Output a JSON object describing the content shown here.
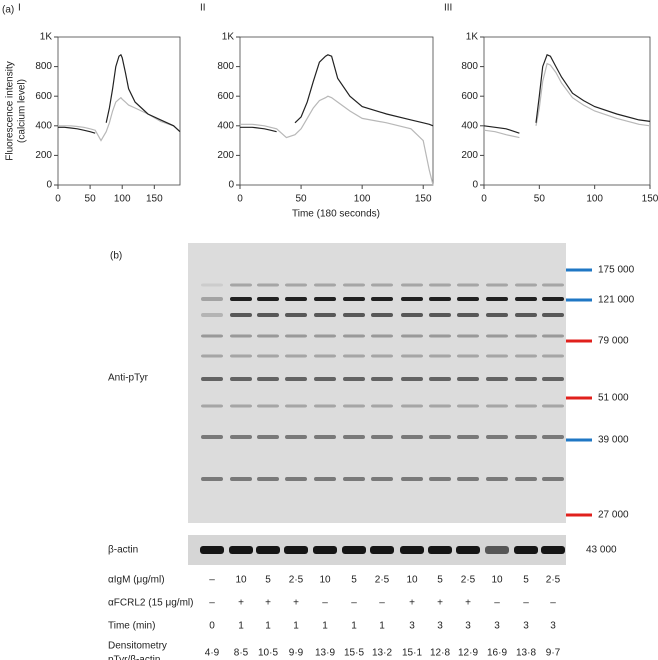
{
  "panel_a_label": "(a)",
  "x_label": "Time (180 seconds)",
  "y_label": [
    "Fluorescence intensity",
    "(calcium level)"
  ],
  "chart_data": [
    {
      "type": "line",
      "title": "I",
      "xlim": [
        0,
        190
      ],
      "xticks": [
        0,
        50,
        100,
        150
      ],
      "ylim": [
        0,
        1000
      ],
      "yticks": [
        0,
        200,
        400,
        600,
        800,
        {
          "value": 1000,
          "label": "1K"
        }
      ],
      "x": [
        0,
        10,
        20,
        30,
        40,
        50,
        58,
        67,
        75,
        80,
        85,
        90,
        95,
        98,
        100,
        105,
        110,
        120,
        130,
        140,
        160,
        180,
        190
      ],
      "series": [
        {
          "color": "#222222",
          "values": [
            390,
            390,
            385,
            380,
            370,
            360,
            350,
            null,
            420,
            520,
            650,
            800,
            870,
            880,
            860,
            760,
            650,
            560,
            520,
            480,
            440,
            400,
            360
          ]
        },
        {
          "color": "#b8b8b8",
          "values": [
            400,
            400,
            400,
            395,
            390,
            380,
            370,
            300,
            360,
            420,
            500,
            560,
            580,
            590,
            580,
            560,
            540,
            520,
            500,
            480,
            430,
            400,
            360
          ]
        }
      ]
    },
    {
      "type": "line",
      "title": "II",
      "xlim": [
        0,
        158
      ],
      "xticks": [
        0,
        50,
        100,
        150
      ],
      "ylim": [
        0,
        1000
      ],
      "yticks": [
        0,
        200,
        400,
        600,
        800,
        {
          "value": 1000,
          "label": "1K"
        }
      ],
      "x": [
        0,
        10,
        20,
        25,
        30,
        38,
        45,
        50,
        55,
        60,
        65,
        70,
        72,
        75,
        80,
        90,
        100,
        120,
        140,
        150,
        155,
        158
      ],
      "series": [
        {
          "color": "#222222",
          "values": [
            390,
            390,
            380,
            370,
            360,
            null,
            420,
            460,
            560,
            700,
            830,
            870,
            880,
            870,
            720,
            600,
            530,
            480,
            440,
            420,
            410,
            400
          ]
        },
        {
          "color": "#b8b8b8",
          "values": [
            410,
            410,
            400,
            390,
            380,
            320,
            340,
            380,
            450,
            520,
            570,
            590,
            600,
            590,
            560,
            500,
            450,
            420,
            380,
            300,
            100,
            0
          ]
        }
      ]
    },
    {
      "type": "line",
      "title": "III",
      "xlim": [
        0,
        150
      ],
      "xticks": [
        0,
        50,
        100,
        150
      ],
      "ylim": [
        0,
        1000
      ],
      "yticks": [
        0,
        200,
        400,
        600,
        800,
        {
          "value": 1000,
          "label": "1K"
        }
      ],
      "x": [
        0,
        10,
        20,
        32,
        40,
        47,
        50,
        53,
        57,
        60,
        65,
        70,
        80,
        90,
        100,
        120,
        140,
        150
      ],
      "series": [
        {
          "color": "#222222",
          "values": [
            400,
            390,
            380,
            350,
            null,
            420,
            600,
            800,
            880,
            870,
            800,
            730,
            620,
            570,
            530,
            480,
            440,
            430
          ]
        },
        {
          "color": "#b8b8b8",
          "values": [
            370,
            360,
            340,
            320,
            null,
            400,
            520,
            700,
            820,
            810,
            760,
            690,
            590,
            540,
            500,
            450,
            410,
            400
          ]
        }
      ]
    }
  ],
  "blot": {
    "panel_label": "(b)",
    "main_label": "Anti-pTyr",
    "actin_label": "β-actin",
    "actin_weight": "43 000",
    "markers": [
      {
        "label": "175 000",
        "color": "#1f77c4"
      },
      {
        "label": "121 000",
        "color": "#1f77c4"
      },
      {
        "label": "79 000",
        "color": "#e0201c"
      },
      {
        "label": "51 000",
        "color": "#e0201c"
      },
      {
        "label": "39 000",
        "color": "#1f77c4"
      },
      {
        "label": "27 000",
        "color": "#e0201c"
      }
    ]
  },
  "table": {
    "rows": [
      {
        "label": [
          "αIgM (μg/ml)"
        ],
        "cells": [
          "–",
          "10",
          "5",
          "2·5",
          "10",
          "5",
          "2·5",
          "10",
          "5",
          "2·5",
          "10",
          "5",
          "2·5"
        ]
      },
      {
        "label": [
          "αFCRL2 (15 μg/ml)"
        ],
        "cells": [
          "–",
          "+",
          "+",
          "+",
          "–",
          "–",
          "–",
          "+",
          "+",
          "+",
          "–",
          "–",
          "–"
        ]
      },
      {
        "label": [
          "Time (min)"
        ],
        "cells": [
          "0",
          "1",
          "1",
          "1",
          "1",
          "1",
          "1",
          "3",
          "3",
          "3",
          "3",
          "3",
          "3"
        ]
      },
      {
        "label": [
          "Densitometry",
          "pTyr/β-actin"
        ],
        "cells": [
          "4·9",
          "8·5",
          "10·5",
          "9·9",
          "13·9",
          "15·5",
          "13·2",
          "15·1",
          "12·8",
          "12·9",
          "16·9",
          "13·8",
          "9·7"
        ]
      }
    ]
  }
}
